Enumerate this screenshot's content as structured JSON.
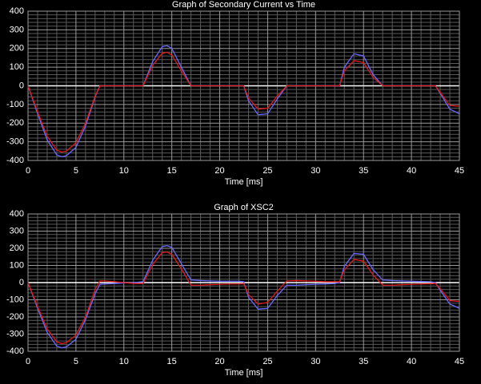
{
  "chart_data": [
    {
      "type": "line",
      "title": "Graph of Secondary Current vs Time",
      "x_label": "Time [ms]",
      "x": [
        0,
        1,
        2,
        3,
        3.5,
        4,
        5,
        6,
        7,
        7.5,
        8,
        9,
        10,
        11,
        12,
        13,
        14,
        14.5,
        15,
        16,
        17,
        18,
        19,
        20,
        21,
        22,
        22.5,
        23,
        24,
        25,
        26,
        27,
        28,
        29,
        30,
        31,
        32,
        32.5,
        33,
        34,
        35,
        36,
        37,
        38,
        39,
        40,
        41,
        42,
        42.5,
        43,
        44,
        45
      ],
      "series": [
        {
          "color": "#6a6aff",
          "values": [
            0,
            -150,
            -290,
            -370,
            -380,
            -375,
            -330,
            -215,
            -60,
            0,
            0,
            0,
            0,
            0,
            0,
            130,
            210,
            215,
            200,
            100,
            0,
            0,
            0,
            0,
            0,
            0,
            0,
            -80,
            -155,
            -150,
            -70,
            0,
            0,
            0,
            0,
            0,
            0,
            0,
            100,
            172,
            160,
            60,
            0,
            0,
            0,
            0,
            0,
            0,
            0,
            -40,
            -125,
            -150
          ]
        },
        {
          "color": "#e01818",
          "values": [
            0,
            -140,
            -270,
            -345,
            -355,
            -350,
            -305,
            -200,
            -55,
            0,
            0,
            0,
            0,
            0,
            0,
            110,
            175,
            180,
            165,
            80,
            0,
            0,
            0,
            0,
            0,
            0,
            0,
            -65,
            -125,
            -120,
            -55,
            0,
            0,
            0,
            0,
            0,
            0,
            0,
            80,
            135,
            125,
            45,
            0,
            0,
            0,
            0,
            0,
            0,
            0,
            -35,
            -105,
            -110
          ]
        }
      ],
      "xlim": [
        0,
        45
      ],
      "xticks": [
        0,
        5,
        10,
        15,
        20,
        25,
        30,
        35,
        40,
        45
      ],
      "ylim": [
        -400,
        400
      ],
      "yticks": [
        -400,
        -300,
        -200,
        -100,
        0,
        100,
        200,
        300,
        400
      ],
      "grid": true
    },
    {
      "type": "line",
      "title": "Graph of XSC2",
      "x_label": "Time [ms]",
      "x": [
        0,
        1,
        2,
        3,
        3.5,
        4,
        5,
        6,
        7,
        7.5,
        8,
        9,
        10,
        11,
        12,
        13,
        14,
        14.5,
        15,
        16,
        17,
        18,
        19,
        20,
        21,
        22,
        22.5,
        23,
        24,
        25,
        26,
        27,
        28,
        29,
        30,
        31,
        32,
        32.5,
        33,
        34,
        35,
        36,
        37,
        38,
        39,
        40,
        41,
        42,
        42.5,
        43,
        44,
        45
      ],
      "series": [
        {
          "color": "#6a6aff",
          "values": [
            0,
            -150,
            -290,
            -370,
            -380,
            -375,
            -330,
            -215,
            -65,
            -10,
            -8,
            -5,
            -2,
            0,
            5,
            130,
            210,
            215,
            205,
            110,
            15,
            12,
            10,
            8,
            8,
            8,
            5,
            -85,
            -155,
            -150,
            -75,
            -15,
            -15,
            -12,
            -10,
            -8,
            -5,
            0,
            95,
            170,
            165,
            75,
            15,
            12,
            10,
            8,
            6,
            5,
            0,
            -45,
            -125,
            -150
          ]
        },
        {
          "color": "#e01818",
          "values": [
            0,
            -140,
            -270,
            -345,
            -355,
            -350,
            -305,
            -200,
            -40,
            10,
            10,
            5,
            0,
            -5,
            -5,
            105,
            175,
            178,
            165,
            80,
            -15,
            -15,
            -12,
            -10,
            -8,
            -8,
            -5,
            -70,
            -125,
            -115,
            -50,
            10,
            12,
            10,
            8,
            5,
            5,
            5,
            75,
            135,
            125,
            45,
            -15,
            -15,
            -12,
            -10,
            -8,
            -6,
            -5,
            -35,
            -105,
            -110
          ]
        }
      ],
      "xlim": [
        0,
        45
      ],
      "xticks": [
        0,
        5,
        10,
        15,
        20,
        25,
        30,
        35,
        40,
        45
      ],
      "ylim": [
        -400,
        400
      ],
      "yticks": [
        -400,
        -300,
        -200,
        -100,
        0,
        100,
        200,
        300,
        400
      ],
      "grid": true
    }
  ]
}
